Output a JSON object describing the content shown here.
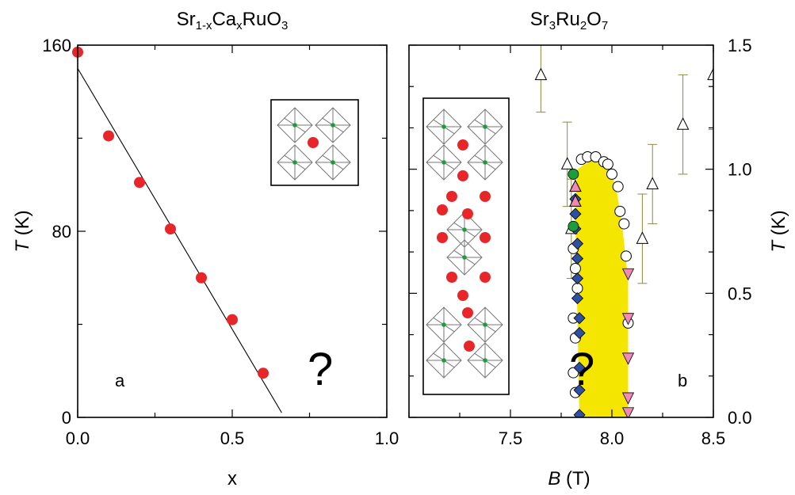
{
  "chart_data": [
    {
      "panel": "a",
      "type": "scatter",
      "title_parts": [
        {
          "t": "Sr",
          "sub": false
        },
        {
          "t": "1-x",
          "sub": true
        },
        {
          "t": "Ca",
          "sub": false
        },
        {
          "t": "x",
          "sub": true
        },
        {
          "t": "RuO",
          "sub": false
        },
        {
          "t": "3",
          "sub": true
        }
      ],
      "xlabel": "x",
      "ylabel_italic": "T",
      "ylabel_unit": " (K)",
      "xlim": [
        0,
        1.0
      ],
      "ylim": [
        0,
        160
      ],
      "xticks": [
        0.0,
        0.5,
        1.0
      ],
      "xtick_labels": [
        "0.0",
        "0.5",
        "1.0"
      ],
      "yticks": [
        0,
        80,
        160
      ],
      "ytick_labels": [
        "0",
        "80",
        "160"
      ],
      "series": [
        {
          "color": "#e8262a",
          "x": [
            0.0,
            0.1,
            0.2,
            0.3,
            0.4,
            0.5,
            0.6
          ],
          "y": [
            157,
            121,
            101,
            81,
            60,
            42,
            19
          ]
        }
      ],
      "fit_line": {
        "x": [
          0.0,
          0.66
        ],
        "y": [
          150,
          2
        ]
      },
      "annotations": [
        "a",
        "?"
      ]
    },
    {
      "panel": "b",
      "type": "scatter",
      "title_parts": [
        {
          "t": "Sr",
          "sub": false
        },
        {
          "t": "3",
          "sub": true
        },
        {
          "t": "Ru",
          "sub": false
        },
        {
          "t": "2",
          "sub": true
        },
        {
          "t": "O",
          "sub": false
        },
        {
          "t": "7",
          "sub": true
        }
      ],
      "xlabel_italic": "B",
      "xlabel_unit": " (T)",
      "ylabel_italic": "T",
      "ylabel_unit": " (K)",
      "xlim": [
        7.0,
        8.5
      ],
      "ylim": [
        0,
        1.5
      ],
      "xticks": [
        7.5,
        8.0,
        8.5
      ],
      "xtick_labels": [
        "7.5",
        "8.0",
        "8.5"
      ],
      "yticks": [
        0.0,
        0.5,
        1.0,
        1.5
      ],
      "ytick_labels": [
        "0.0",
        "0.5",
        "1.0",
        "1.5"
      ],
      "fill_region": {
        "color": "#f4e600",
        "outline": [
          [
            7.84,
            0.0
          ],
          [
            7.82,
            0.8
          ],
          [
            7.83,
            1.0
          ],
          [
            7.92,
            1.05
          ],
          [
            7.98,
            1.02
          ],
          [
            8.02,
            0.93
          ],
          [
            8.05,
            0.78
          ],
          [
            8.08,
            0.55
          ],
          [
            8.08,
            0.0
          ]
        ]
      },
      "series": [
        {
          "marker": "triangle-up-open",
          "x": [
            7.65,
            7.78,
            7.8,
            8.15,
            8.2,
            8.35,
            8.5
          ],
          "y": [
            1.38,
            1.02,
            0.76,
            0.72,
            0.94,
            1.18,
            1.38
          ],
          "err": [
            0.15,
            0.17,
            0.2,
            0.18,
            0.16,
            0.2,
            0.22
          ],
          "color": "#ffffff",
          "errcolor": "#8a8a40"
        },
        {
          "marker": "circle-open",
          "x": [
            7.81,
            7.82,
            7.83,
            7.85,
            7.88,
            7.92,
            7.96,
            7.98,
            8.0,
            8.03,
            8.04,
            8.06,
            8.07,
            8.08,
            7.81,
            7.82,
            7.81,
            7.82
          ],
          "y": [
            0.68,
            0.6,
            0.52,
            1.04,
            1.05,
            1.05,
            1.03,
            1.02,
            0.98,
            0.93,
            0.83,
            0.78,
            0.65,
            0.38,
            0.4,
            0.32,
            0.18,
            0.1
          ],
          "color": "#ffffff"
        },
        {
          "marker": "diamond",
          "x": [
            7.82,
            7.82,
            7.82,
            7.83,
            7.83,
            7.83,
            7.83,
            7.84,
            7.84,
            7.84,
            7.84,
            7.84
          ],
          "y": [
            0.88,
            0.82,
            0.76,
            0.7,
            0.64,
            0.56,
            0.48,
            0.4,
            0.34,
            0.2,
            0.11,
            0.01
          ],
          "color": "#2f4fa0"
        },
        {
          "marker": "circle-filled",
          "x": [
            7.81,
            7.81
          ],
          "y": [
            0.98,
            0.77
          ],
          "color": "#1e9c3c"
        },
        {
          "marker": "triangle-up",
          "x": [
            7.82,
            7.82
          ],
          "y": [
            0.93,
            0.87
          ],
          "color": "#f08ab4"
        },
        {
          "marker": "triangle-down",
          "x": [
            8.08,
            8.08,
            8.08,
            8.08,
            8.08
          ],
          "y": [
            0.58,
            0.4,
            0.24,
            0.08,
            0.02
          ],
          "color": "#f08ab4"
        }
      ],
      "annotations": [
        "b",
        "?"
      ]
    }
  ]
}
